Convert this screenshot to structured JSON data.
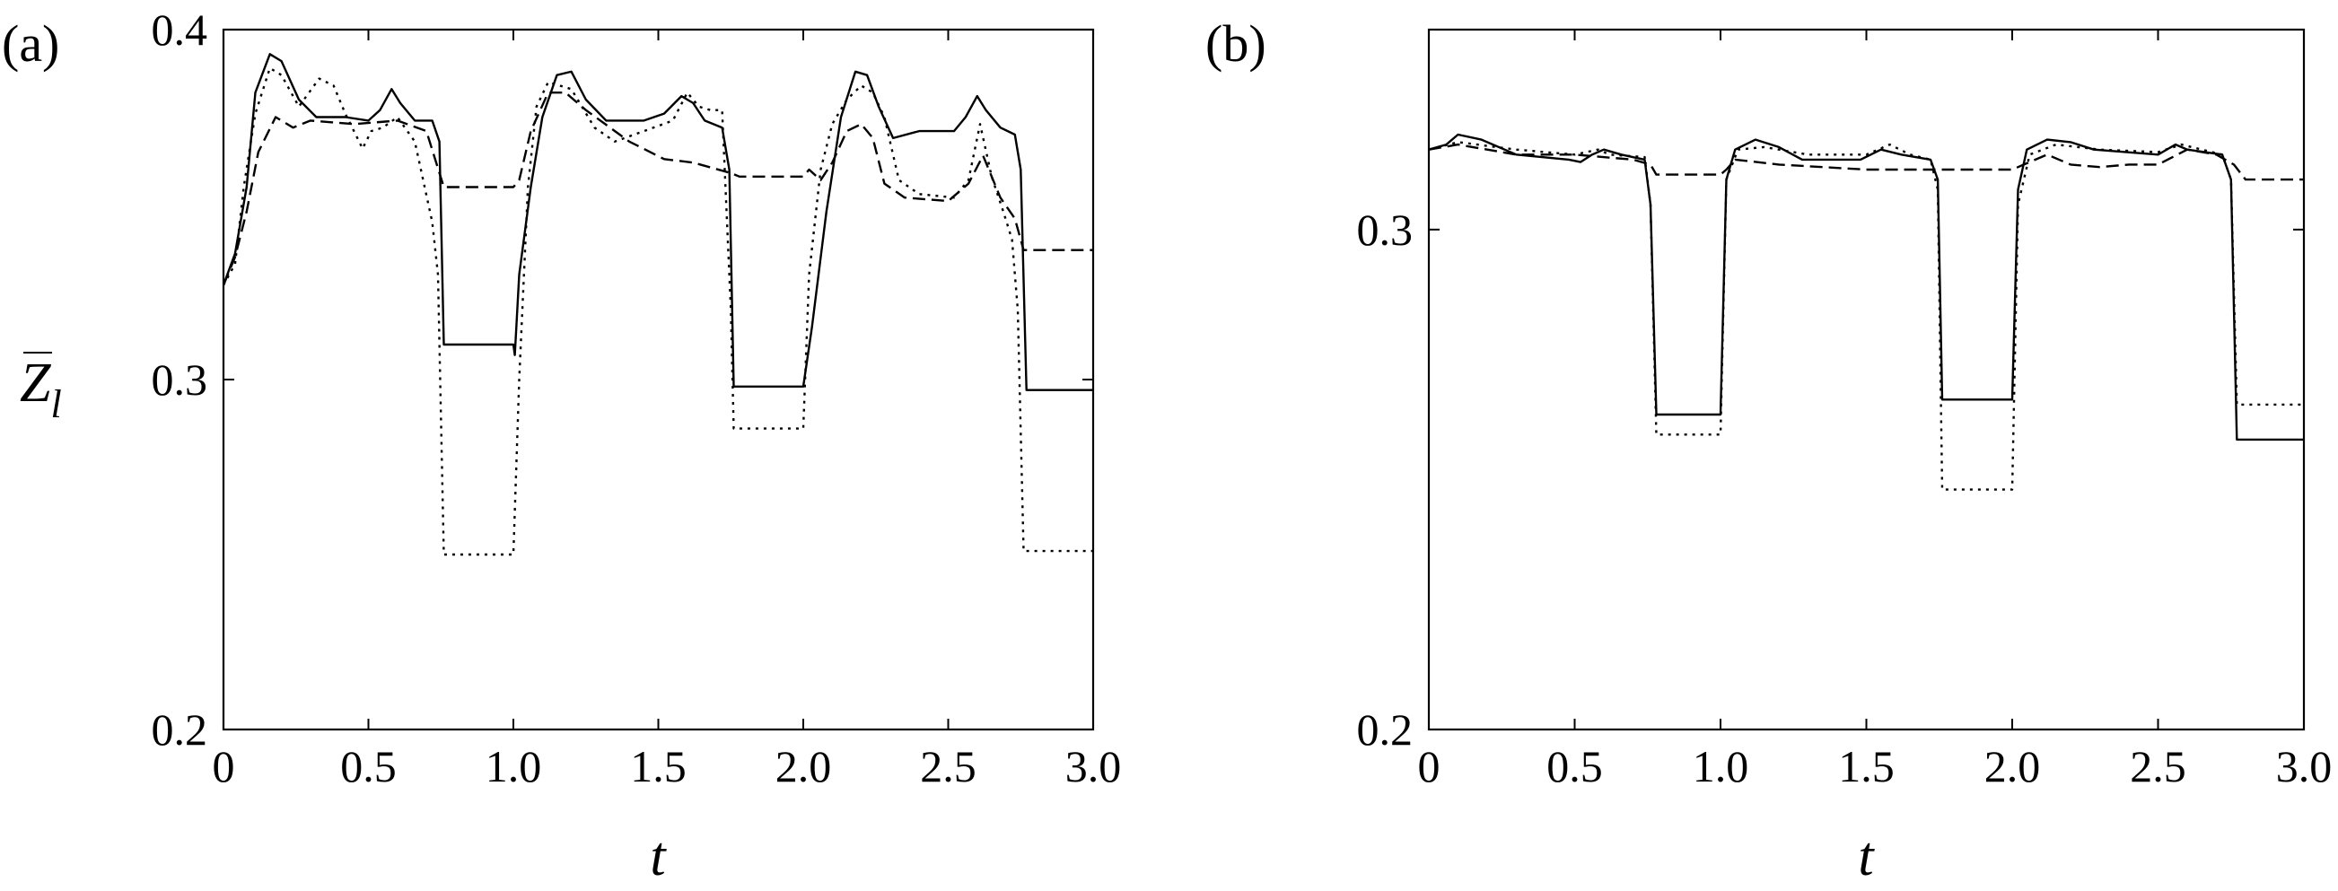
{
  "chart_data": [
    {
      "panel": "(a)",
      "type": "line",
      "xlabel": "t",
      "ylabel": "Z̄l",
      "xlim": [
        0,
        3.0
      ],
      "ylim": [
        0.2,
        0.4
      ],
      "xticks": [
        "0",
        "0.5",
        "1.0",
        "1.5",
        "2.0",
        "2.5",
        "3.0"
      ],
      "yticks": [
        "0.2",
        "0.3",
        "0.4"
      ],
      "grid": false,
      "series": [
        {
          "style": "solid",
          "points": [
            [
              0,
              0.327
            ],
            [
              0.04,
              0.336
            ],
            [
              0.08,
              0.355
            ],
            [
              0.11,
              0.382
            ],
            [
              0.16,
              0.393
            ],
            [
              0.2,
              0.391
            ],
            [
              0.26,
              0.38
            ],
            [
              0.32,
              0.375
            ],
            [
              0.42,
              0.375
            ],
            [
              0.5,
              0.374
            ],
            [
              0.54,
              0.377
            ],
            [
              0.58,
              0.383
            ],
            [
              0.61,
              0.379
            ],
            [
              0.66,
              0.374
            ],
            [
              0.72,
              0.374
            ],
            [
              0.745,
              0.368
            ],
            [
              0.76,
              0.31
            ],
            [
              1.0,
              0.31
            ],
            [
              1.005,
              0.307
            ],
            [
              1.02,
              0.33
            ],
            [
              1.06,
              0.355
            ],
            [
              1.1,
              0.375
            ],
            [
              1.15,
              0.387
            ],
            [
              1.2,
              0.388
            ],
            [
              1.25,
              0.38
            ],
            [
              1.32,
              0.374
            ],
            [
              1.45,
              0.374
            ],
            [
              1.52,
              0.376
            ],
            [
              1.58,
              0.381
            ],
            [
              1.62,
              0.379
            ],
            [
              1.66,
              0.374
            ],
            [
              1.72,
              0.372
            ],
            [
              1.745,
              0.36
            ],
            [
              1.76,
              0.298
            ],
            [
              2.0,
              0.298
            ],
            [
              2.03,
              0.315
            ],
            [
              2.08,
              0.348
            ],
            [
              2.13,
              0.375
            ],
            [
              2.18,
              0.388
            ],
            [
              2.22,
              0.387
            ],
            [
              2.26,
              0.378
            ],
            [
              2.31,
              0.369
            ],
            [
              2.4,
              0.371
            ],
            [
              2.52,
              0.371
            ],
            [
              2.56,
              0.375
            ],
            [
              2.6,
              0.381
            ],
            [
              2.63,
              0.377
            ],
            [
              2.68,
              0.372
            ],
            [
              2.73,
              0.37
            ],
            [
              2.75,
              0.36
            ],
            [
              2.77,
              0.297
            ],
            [
              3.0,
              0.297
            ]
          ]
        },
        {
          "style": "dashed",
          "points": [
            [
              0,
              0.327
            ],
            [
              0.04,
              0.335
            ],
            [
              0.08,
              0.348
            ],
            [
              0.12,
              0.365
            ],
            [
              0.18,
              0.375
            ],
            [
              0.24,
              0.372
            ],
            [
              0.3,
              0.374
            ],
            [
              0.45,
              0.373
            ],
            [
              0.6,
              0.374
            ],
            [
              0.7,
              0.371
            ],
            [
              0.76,
              0.355
            ],
            [
              1.0,
              0.355
            ],
            [
              1.02,
              0.357
            ],
            [
              1.06,
              0.371
            ],
            [
              1.12,
              0.382
            ],
            [
              1.18,
              0.382
            ],
            [
              1.25,
              0.377
            ],
            [
              1.4,
              0.368
            ],
            [
              1.52,
              0.363
            ],
            [
              1.62,
              0.362
            ],
            [
              1.75,
              0.359
            ],
            [
              1.78,
              0.358
            ],
            [
              2.0,
              0.358
            ],
            [
              2.02,
              0.36
            ],
            [
              2.06,
              0.357
            ],
            [
              2.1,
              0.362
            ],
            [
              2.15,
              0.371
            ],
            [
              2.2,
              0.373
            ],
            [
              2.24,
              0.369
            ],
            [
              2.28,
              0.356
            ],
            [
              2.35,
              0.352
            ],
            [
              2.5,
              0.351
            ],
            [
              2.57,
              0.356
            ],
            [
              2.62,
              0.364
            ],
            [
              2.68,
              0.352
            ],
            [
              2.73,
              0.346
            ],
            [
              2.76,
              0.337
            ],
            [
              3.0,
              0.337
            ]
          ]
        },
        {
          "style": "dotted",
          "points": [
            [
              0,
              0.327
            ],
            [
              0.04,
              0.333
            ],
            [
              0.07,
              0.355
            ],
            [
              0.11,
              0.376
            ],
            [
              0.16,
              0.389
            ],
            [
              0.2,
              0.387
            ],
            [
              0.26,
              0.378
            ],
            [
              0.33,
              0.386
            ],
            [
              0.38,
              0.384
            ],
            [
              0.42,
              0.376
            ],
            [
              0.48,
              0.366
            ],
            [
              0.51,
              0.371
            ],
            [
              0.55,
              0.372
            ],
            [
              0.6,
              0.375
            ],
            [
              0.66,
              0.368
            ],
            [
              0.72,
              0.345
            ],
            [
              0.74,
              0.33
            ],
            [
              0.76,
              0.25
            ],
            [
              1.0,
              0.25
            ],
            [
              1.02,
              0.3
            ],
            [
              1.05,
              0.355
            ],
            [
              1.08,
              0.378
            ],
            [
              1.12,
              0.385
            ],
            [
              1.2,
              0.383
            ],
            [
              1.28,
              0.372
            ],
            [
              1.35,
              0.368
            ],
            [
              1.45,
              0.371
            ],
            [
              1.55,
              0.374
            ],
            [
              1.6,
              0.382
            ],
            [
              1.64,
              0.378
            ],
            [
              1.68,
              0.377
            ],
            [
              1.72,
              0.377
            ],
            [
              1.75,
              0.32
            ],
            [
              1.76,
              0.286
            ],
            [
              2.0,
              0.286
            ],
            [
              2.02,
              0.33
            ],
            [
              2.06,
              0.36
            ],
            [
              2.1,
              0.373
            ],
            [
              2.15,
              0.38
            ],
            [
              2.2,
              0.384
            ],
            [
              2.24,
              0.382
            ],
            [
              2.28,
              0.375
            ],
            [
              2.33,
              0.357
            ],
            [
              2.4,
              0.353
            ],
            [
              2.52,
              0.352
            ],
            [
              2.57,
              0.357
            ],
            [
              2.61,
              0.373
            ],
            [
              2.65,
              0.358
            ],
            [
              2.69,
              0.348
            ],
            [
              2.72,
              0.34
            ],
            [
              2.74,
              0.32
            ],
            [
              2.76,
              0.251
            ],
            [
              3.0,
              0.251
            ]
          ]
        }
      ]
    },
    {
      "panel": "(b)",
      "type": "line",
      "xlabel": "t",
      "ylabel": "",
      "xlim": [
        0,
        3.0
      ],
      "ylim": [
        0.2,
        0.34
      ],
      "xticks": [
        "0",
        "0.5",
        "1.0",
        "1.5",
        "2.0",
        "2.5",
        "3.0"
      ],
      "yticks": [
        "0.2",
        "0.3"
      ],
      "grid": false,
      "series": [
        {
          "style": "solid",
          "points": [
            [
              0,
              0.316
            ],
            [
              0.06,
              0.317
            ],
            [
              0.1,
              0.319
            ],
            [
              0.18,
              0.318
            ],
            [
              0.3,
              0.315
            ],
            [
              0.48,
              0.314
            ],
            [
              0.52,
              0.3135
            ],
            [
              0.56,
              0.315
            ],
            [
              0.6,
              0.316
            ],
            [
              0.66,
              0.315
            ],
            [
              0.74,
              0.314
            ],
            [
              0.76,
              0.305
            ],
            [
              0.78,
              0.263
            ],
            [
              1.0,
              0.263
            ],
            [
              1.02,
              0.31
            ],
            [
              1.05,
              0.316
            ],
            [
              1.12,
              0.318
            ],
            [
              1.2,
              0.3165
            ],
            [
              1.28,
              0.314
            ],
            [
              1.48,
              0.314
            ],
            [
              1.55,
              0.316
            ],
            [
              1.62,
              0.315
            ],
            [
              1.72,
              0.314
            ],
            [
              1.745,
              0.31
            ],
            [
              1.76,
              0.266
            ],
            [
              2.0,
              0.266
            ],
            [
              2.02,
              0.308
            ],
            [
              2.05,
              0.316
            ],
            [
              2.12,
              0.318
            ],
            [
              2.2,
              0.3175
            ],
            [
              2.28,
              0.316
            ],
            [
              2.5,
              0.315
            ],
            [
              2.56,
              0.317
            ],
            [
              2.6,
              0.316
            ],
            [
              2.72,
              0.315
            ],
            [
              2.75,
              0.31
            ],
            [
              2.77,
              0.258
            ],
            [
              3.0,
              0.258
            ]
          ]
        },
        {
          "style": "dashed",
          "points": [
            [
              0,
              0.316
            ],
            [
              0.1,
              0.317
            ],
            [
              0.3,
              0.315
            ],
            [
              0.5,
              0.315
            ],
            [
              0.7,
              0.314
            ],
            [
              0.76,
              0.313
            ],
            [
              0.78,
              0.311
            ],
            [
              1.0,
              0.311
            ],
            [
              1.02,
              0.312
            ],
            [
              1.05,
              0.314
            ],
            [
              1.2,
              0.313
            ],
            [
              1.5,
              0.312
            ],
            [
              1.75,
              0.312
            ],
            [
              1.78,
              0.312
            ],
            [
              2.0,
              0.312
            ],
            [
              2.04,
              0.313
            ],
            [
              2.12,
              0.315
            ],
            [
              2.2,
              0.313
            ],
            [
              2.3,
              0.3125
            ],
            [
              2.4,
              0.313
            ],
            [
              2.5,
              0.313
            ],
            [
              2.6,
              0.316
            ],
            [
              2.7,
              0.315
            ],
            [
              2.76,
              0.313
            ],
            [
              2.8,
              0.31
            ],
            [
              3.0,
              0.31
            ]
          ]
        },
        {
          "style": "dotted",
          "points": [
            [
              0,
              0.316
            ],
            [
              0.1,
              0.3175
            ],
            [
              0.3,
              0.316
            ],
            [
              0.5,
              0.315
            ],
            [
              0.58,
              0.316
            ],
            [
              0.62,
              0.315
            ],
            [
              0.74,
              0.3145
            ],
            [
              0.76,
              0.305
            ],
            [
              0.78,
              0.259
            ],
            [
              1.0,
              0.259
            ],
            [
              1.02,
              0.31
            ],
            [
              1.06,
              0.316
            ],
            [
              1.15,
              0.3165
            ],
            [
              1.3,
              0.315
            ],
            [
              1.5,
              0.315
            ],
            [
              1.58,
              0.317
            ],
            [
              1.65,
              0.315
            ],
            [
              1.72,
              0.314
            ],
            [
              1.745,
              0.308
            ],
            [
              1.76,
              0.248
            ],
            [
              2.0,
              0.248
            ],
            [
              2.02,
              0.305
            ],
            [
              2.06,
              0.315
            ],
            [
              2.15,
              0.317
            ],
            [
              2.3,
              0.316
            ],
            [
              2.5,
              0.3155
            ],
            [
              2.58,
              0.317
            ],
            [
              2.65,
              0.316
            ],
            [
              2.72,
              0.315
            ],
            [
              2.75,
              0.31
            ],
            [
              2.77,
              0.265
            ],
            [
              3.0,
              0.265
            ]
          ]
        }
      ]
    }
  ]
}
